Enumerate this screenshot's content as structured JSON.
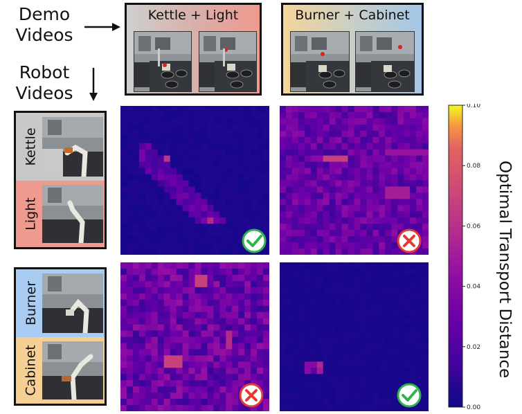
{
  "labels": {
    "demo_videos": [
      "Demo",
      "Videos"
    ],
    "robot_videos": [
      "Robot",
      "Videos"
    ]
  },
  "demo_groups": [
    {
      "title": "Kettle + Light",
      "bg": [
        "#c9c9c9",
        "#ee9a8e"
      ]
    },
    {
      "title": "Burner + Cabinet",
      "bg": [
        "#f2d29a",
        "#a9c8e8"
      ]
    }
  ],
  "robot_groups": [
    {
      "segments": [
        {
          "label": "Kettle",
          "color": "#c8c8c8"
        },
        {
          "label": "Light",
          "color": "#ee9a8e"
        }
      ]
    },
    {
      "segments": [
        {
          "label": "Burner",
          "color": "#a9cdf2"
        },
        {
          "label": "Cabinet",
          "color": "#f5cf93"
        }
      ]
    }
  ],
  "heatmaps": [
    {
      "id": "kettle-light-vs-kettle-light",
      "result": "match"
    },
    {
      "id": "burner-cabinet-vs-kettle-light",
      "result": "mismatch"
    },
    {
      "id": "kettle-light-vs-burner-cabinet",
      "result": "mismatch"
    },
    {
      "id": "burner-cabinet-vs-burner-cabinet",
      "result": "match"
    }
  ],
  "colorbar": {
    "title": "Optimal Transport Distance",
    "ticks": [
      "0.10",
      "0.08",
      "0.06",
      "0.04",
      "0.02",
      "0.00"
    ],
    "range": [
      0,
      0.1
    ],
    "colormap": "plasma"
  },
  "colors": {
    "match": "#2fb34a",
    "mismatch": "#e53935",
    "border": "#111111"
  }
}
